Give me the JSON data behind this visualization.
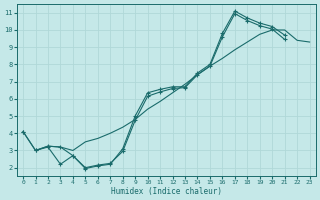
{
  "xlabel": "Humidex (Indice chaleur)",
  "bg_color": "#c5e8e8",
  "grid_color": "#b0d8d8",
  "line_color": "#1a6b6b",
  "xlim": [
    -0.5,
    23.5
  ],
  "ylim": [
    1.5,
    11.5
  ],
  "xticks": [
    0,
    1,
    2,
    3,
    4,
    5,
    6,
    7,
    8,
    9,
    10,
    11,
    12,
    13,
    14,
    15,
    16,
    17,
    18,
    19,
    20,
    21,
    22,
    23
  ],
  "yticks": [
    2,
    3,
    4,
    5,
    6,
    7,
    8,
    9,
    10,
    11
  ],
  "line_a_x": [
    0,
    1,
    2,
    3,
    4,
    5,
    6,
    7,
    8,
    9,
    10,
    11,
    12,
    13,
    14,
    15,
    16,
    17,
    18,
    19,
    20,
    21
  ],
  "line_a_y": [
    4.1,
    3.0,
    3.2,
    2.2,
    2.7,
    1.95,
    2.1,
    2.2,
    3.1,
    5.0,
    6.35,
    6.55,
    6.7,
    6.7,
    7.5,
    8.0,
    9.8,
    11.1,
    10.7,
    10.4,
    10.2,
    9.7
  ],
  "line_b_x": [
    1,
    2,
    3,
    4,
    5,
    6,
    7,
    8,
    9,
    10,
    11,
    12,
    13,
    14,
    15,
    16,
    17,
    18,
    19,
    20,
    21,
    22,
    23
  ],
  "line_b_y": [
    3.0,
    3.25,
    3.2,
    3.0,
    3.5,
    3.7,
    4.0,
    4.35,
    4.8,
    5.4,
    5.85,
    6.35,
    6.85,
    7.4,
    7.9,
    8.35,
    8.85,
    9.3,
    9.75,
    10.0,
    10.0,
    9.4,
    9.3
  ],
  "line_c_x": [
    0,
    1,
    2,
    3,
    4,
    5,
    6,
    7,
    8,
    9,
    10,
    11,
    12,
    13,
    14,
    15,
    16,
    17,
    18,
    19,
    20,
    21
  ],
  "line_c_y": [
    4.1,
    3.0,
    3.25,
    3.2,
    2.7,
    2.0,
    2.15,
    2.25,
    2.95,
    4.75,
    6.15,
    6.4,
    6.6,
    6.65,
    7.4,
    7.9,
    9.6,
    10.95,
    10.55,
    10.25,
    10.05,
    9.45
  ]
}
